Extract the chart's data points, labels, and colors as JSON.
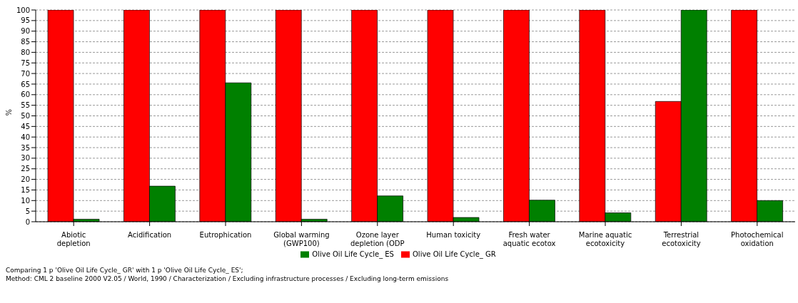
{
  "chart_data": {
    "type": "bar",
    "ylabel": "%",
    "categories": [
      "Abiotic depletion",
      "Acidification",
      "Eutrophication",
      "Global warming (GWP100)",
      "Ozone layer depletion (ODP",
      "Human toxicity",
      "Fresh water aquatic ecotox",
      "Marine aquatic ecotoxicity",
      "Terrestrial ecotoxicity",
      "Photochemical oxidation"
    ],
    "series": [
      {
        "name": "Olive Oil Life Cycle_ GR",
        "color": "#ff0000",
        "values": [
          100,
          100,
          100,
          100,
          100,
          100,
          100,
          100,
          56.8,
          100
        ]
      },
      {
        "name": "Olive Oil Life Cycle_ ES",
        "color": "#008000",
        "values": [
          1.2,
          16.8,
          65.6,
          1.2,
          12.2,
          2,
          10.2,
          4.2,
          100,
          10
        ]
      }
    ],
    "ylim": [
      0,
      100
    ],
    "yticks": [
      0,
      5,
      10,
      15,
      20,
      25,
      30,
      35,
      40,
      45,
      50,
      55,
      60,
      65,
      70,
      75,
      80,
      85,
      90,
      95,
      100
    ],
    "grid": "y",
    "legend": "bottom",
    "annotations": [
      "Comparing 1 p 'Olive Oil Life Cycle_ GR' with 1 p 'Olive Oil Life Cycle_ ES';",
      "Method: CML 2 baseline 2000 V2.05 / World, 1990 / Characterization / Excluding infrastructure processes / Excluding long-term emissions"
    ]
  }
}
